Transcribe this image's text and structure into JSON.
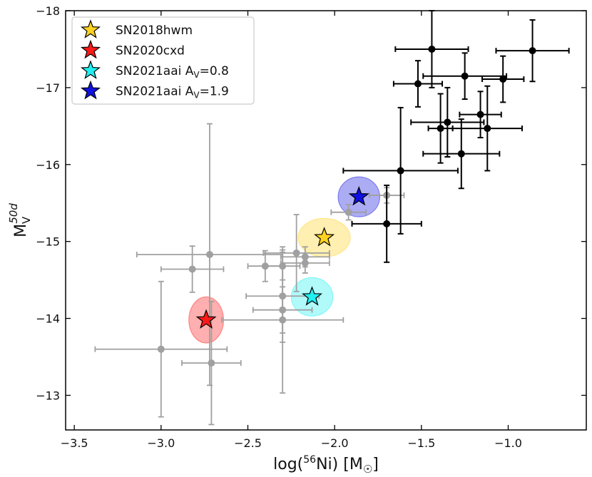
{
  "chart_data": {
    "type": "scatter",
    "xlabel": "log(56Ni) [M☉]",
    "xlabel_parts": {
      "pre": "log(",
      "sup": "56",
      "mid": "Ni) [M",
      "sub": "☉",
      "post": "]"
    },
    "ylabel": "M_V^50d",
    "ylabel_parts": {
      "base": "M",
      "sub": "V",
      "sup": "50d"
    },
    "xlim": [
      -3.55,
      -0.55
    ],
    "ylim": [
      -12.55,
      -18.0
    ],
    "xticks": [
      -3.5,
      -3.0,
      -2.5,
      -2.0,
      -1.5,
      -1.0
    ],
    "xtick_labels": [
      "−3.5",
      "−3.0",
      "−2.5",
      "−2.0",
      "−1.5",
      "−1.0"
    ],
    "yticks": [
      -13,
      -14,
      -15,
      -16,
      -17,
      -18
    ],
    "ytick_labels": [
      "−13",
      "−14",
      "−15",
      "−16",
      "−17",
      "−18"
    ],
    "legend_position": "top-left",
    "series": [
      {
        "name": "comparison-grey",
        "color": "#a0a0a0",
        "points": [
          {
            "x": -2.72,
            "y": -14.83,
            "xerr": 0.42,
            "yerr": 1.7
          },
          {
            "x": -2.82,
            "y": -14.64,
            "xerr": 0.18,
            "yerr": 0.3
          },
          {
            "x": -3.0,
            "y": -13.6,
            "xerr": 0.38,
            "yerr": 0.88
          },
          {
            "x": -2.71,
            "y": -13.42,
            "xerr": 0.17,
            "yerr": 0.8
          },
          {
            "x": -2.4,
            "y": -14.68,
            "xerr": 0.1,
            "yerr": 0.2
          },
          {
            "x": -2.3,
            "y": -14.68,
            "xerr": 0.1,
            "yerr": 0.18
          },
          {
            "x": -2.22,
            "y": -14.85,
            "xerr": 0.19,
            "yerr": 0.5
          },
          {
            "x": -2.17,
            "y": -14.72,
            "xerr": 0.14,
            "yerr": 0.13
          },
          {
            "x": -2.17,
            "y": -14.8,
            "xerr": 0.14,
            "yerr": 0.13
          },
          {
            "x": -2.3,
            "y": -14.29,
            "xerr": 0.21,
            "yerr": 0.6
          },
          {
            "x": -2.3,
            "y": -14.11,
            "xerr": 0.17,
            "yerr": 0.3
          },
          {
            "x": -2.3,
            "y": -13.98,
            "xerr": 0.35,
            "yerr": 0.95
          },
          {
            "x": -1.92,
            "y": -15.38,
            "xerr": 0.1,
            "yerr": 0.1
          },
          {
            "x": -1.7,
            "y": -15.6,
            "xerr": 0.1,
            "yerr": 0.1
          }
        ]
      },
      {
        "name": "comparison-black",
        "color": "#000000",
        "points": [
          {
            "x": -1.44,
            "y": -17.5,
            "xerr": 0.21,
            "yerr": 0.5
          },
          {
            "x": -0.86,
            "y": -17.48,
            "xerr": 0.21,
            "yerr": 0.4
          },
          {
            "x": -1.52,
            "y": -17.05,
            "xerr": 0.14,
            "yerr": 0.3
          },
          {
            "x": -1.25,
            "y": -17.15,
            "xerr": 0.24,
            "yerr": 0.3
          },
          {
            "x": -1.03,
            "y": -17.11,
            "xerr": 0.12,
            "yerr": 0.3
          },
          {
            "x": -1.16,
            "y": -16.65,
            "xerr": 0.12,
            "yerr": 0.3
          },
          {
            "x": -1.35,
            "y": -16.55,
            "xerr": 0.21,
            "yerr": 0.45
          },
          {
            "x": -1.39,
            "y": -16.47,
            "xerr": 0.07,
            "yerr": 0.45
          },
          {
            "x": -1.12,
            "y": -16.47,
            "xerr": 0.2,
            "yerr": 0.55
          },
          {
            "x": -1.27,
            "y": -16.14,
            "xerr": 0.22,
            "yerr": 0.45
          },
          {
            "x": -1.62,
            "y": -15.92,
            "xerr": 0.33,
            "yerr": 0.82
          },
          {
            "x": -1.7,
            "y": -15.23,
            "xerr": 0.2,
            "yerr": 0.5
          }
        ]
      }
    ],
    "highlighted": [
      {
        "name": "SN2018hwm",
        "label": "SN2018hwm",
        "x": -2.06,
        "y": -15.05,
        "color": "#ffd21f",
        "ellipse_rx": 0.15,
        "ellipse_ry": 0.25
      },
      {
        "name": "SN2020cxd",
        "label": "SN2020cxd",
        "x": -2.74,
        "y": -13.98,
        "color": "#ff1a1a",
        "ellipse_rx": 0.1,
        "ellipse_ry": 0.3
      },
      {
        "name": "SN2021aai-av08",
        "label": "SN2021aai A",
        "label_sub": "V",
        "label_post": "=0.8",
        "x": -2.13,
        "y": -14.28,
        "color": "#20f0f0",
        "ellipse_rx": 0.12,
        "ellipse_ry": 0.25
      },
      {
        "name": "SN2021aai-av19",
        "label": "SN2021aai A",
        "label_sub": "V",
        "label_post": "=1.9",
        "x": -1.86,
        "y": -15.58,
        "color": "#1010e0",
        "ellipse_rx": 0.12,
        "ellipse_ry": 0.26
      }
    ]
  }
}
